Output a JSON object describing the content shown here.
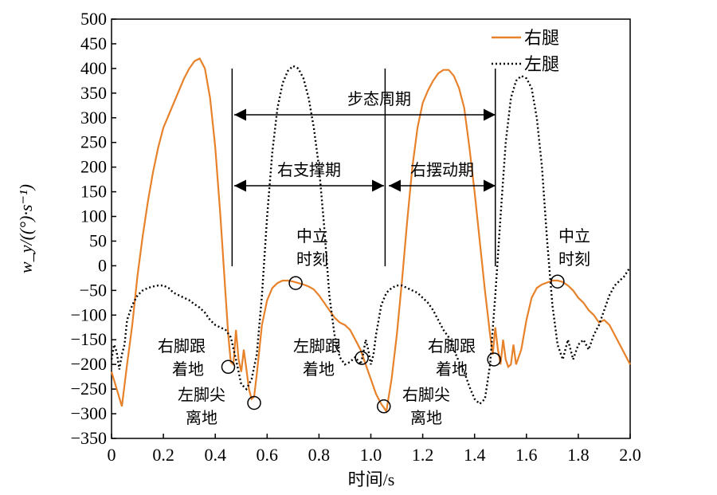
{
  "chart_data": {
    "type": "line",
    "xlabel": "时间/s",
    "ylabel": "w_y/((°)·s⁻¹)",
    "xlim": [
      0,
      2.0
    ],
    "ylim": [
      -350,
      500
    ],
    "x_ticks": [
      0,
      0.2,
      0.4,
      0.6,
      0.8,
      1.0,
      1.2,
      1.4,
      1.6,
      1.8,
      2.0
    ],
    "x_tick_labels": [
      "0",
      "0.2",
      "0.4",
      "0.6",
      "0.8",
      "1.0",
      "1.2",
      "1.4",
      "1.6",
      "1.8",
      "2.0"
    ],
    "y_ticks": [
      500,
      450,
      400,
      350,
      300,
      250,
      200,
      150,
      100,
      50,
      0,
      -50,
      -100,
      -150,
      -200,
      -250,
      -300,
      -350
    ],
    "y_tick_labels": [
      "500",
      "450",
      "400",
      "350",
      "300",
      "250",
      "200",
      "150",
      "100",
      "50",
      "0",
      "−50",
      "−100",
      "−150",
      "−200",
      "−250",
      "−300",
      "−350"
    ],
    "grid": false,
    "legend_position": "top-right",
    "series": [
      {
        "name": "右腿",
        "color": "#e8822a",
        "style": "solid",
        "x": [
          0.0,
          0.02,
          0.04,
          0.06,
          0.08,
          0.1,
          0.12,
          0.14,
          0.16,
          0.18,
          0.2,
          0.22,
          0.24,
          0.26,
          0.28,
          0.3,
          0.32,
          0.34,
          0.36,
          0.38,
          0.4,
          0.42,
          0.44,
          0.45,
          0.46,
          0.47,
          0.48,
          0.49,
          0.5,
          0.51,
          0.52,
          0.53,
          0.54,
          0.55,
          0.56,
          0.58,
          0.6,
          0.62,
          0.64,
          0.66,
          0.68,
          0.7,
          0.72,
          0.74,
          0.76,
          0.78,
          0.8,
          0.82,
          0.84,
          0.86,
          0.88,
          0.9,
          0.92,
          0.94,
          0.96,
          0.98,
          1.0,
          1.02,
          1.04,
          1.06,
          1.08,
          1.1,
          1.12,
          1.14,
          1.16,
          1.18,
          1.2,
          1.22,
          1.24,
          1.26,
          1.28,
          1.3,
          1.32,
          1.34,
          1.36,
          1.38,
          1.4,
          1.42,
          1.44,
          1.46,
          1.47,
          1.48,
          1.49,
          1.5,
          1.51,
          1.52,
          1.53,
          1.54,
          1.55,
          1.56,
          1.58,
          1.6,
          1.62,
          1.64,
          1.66,
          1.68,
          1.7,
          1.72,
          1.74,
          1.76,
          1.78,
          1.8,
          1.82,
          1.84,
          1.86,
          1.88,
          1.9,
          1.92,
          1.94,
          1.96,
          1.98,
          2.0
        ],
        "y": [
          -215,
          -250,
          -285,
          -200,
          -120,
          -20,
          60,
          130,
          190,
          240,
          280,
          305,
          330,
          355,
          380,
          400,
          415,
          420,
          400,
          340,
          240,
          100,
          -60,
          -140,
          -195,
          -200,
          -130,
          -190,
          -215,
          -170,
          -210,
          -250,
          -270,
          -265,
          -220,
          -120,
          -70,
          -45,
          -35,
          -30,
          -30,
          -32,
          -35,
          -38,
          -42,
          -48,
          -60,
          -75,
          -90,
          -105,
          -115,
          -120,
          -130,
          -150,
          -170,
          -200,
          -230,
          -260,
          -280,
          -295,
          -230,
          -140,
          -30,
          90,
          200,
          280,
          330,
          355,
          375,
          390,
          397,
          397,
          385,
          360,
          320,
          240,
          150,
          50,
          -50,
          -140,
          -180,
          -125,
          -170,
          -200,
          -150,
          -190,
          -205,
          -200,
          -160,
          -200,
          -170,
          -110,
          -65,
          -45,
          -38,
          -34,
          -30,
          -30,
          -33,
          -40,
          -50,
          -65,
          -75,
          -90,
          -100,
          -115,
          -110,
          -120,
          -140,
          -160,
          -180,
          -200
        ]
      },
      {
        "name": "左腿",
        "color": "#000000",
        "style": "dotted",
        "x": [
          0.0,
          0.01,
          0.02,
          0.03,
          0.04,
          0.05,
          0.06,
          0.08,
          0.1,
          0.12,
          0.14,
          0.16,
          0.18,
          0.2,
          0.22,
          0.24,
          0.26,
          0.28,
          0.3,
          0.32,
          0.34,
          0.36,
          0.38,
          0.4,
          0.42,
          0.44,
          0.46,
          0.48,
          0.5,
          0.52,
          0.54,
          0.56,
          0.58,
          0.6,
          0.62,
          0.64,
          0.66,
          0.68,
          0.7,
          0.72,
          0.74,
          0.76,
          0.78,
          0.8,
          0.82,
          0.84,
          0.86,
          0.88,
          0.9,
          0.92,
          0.94,
          0.96,
          0.97,
          0.98,
          0.99,
          1.0,
          1.01,
          1.02,
          1.03,
          1.04,
          1.06,
          1.08,
          1.1,
          1.12,
          1.14,
          1.16,
          1.18,
          1.2,
          1.22,
          1.24,
          1.26,
          1.28,
          1.3,
          1.32,
          1.34,
          1.36,
          1.38,
          1.4,
          1.42,
          1.44,
          1.46,
          1.48,
          1.5,
          1.52,
          1.54,
          1.56,
          1.58,
          1.6,
          1.62,
          1.64,
          1.66,
          1.68,
          1.7,
          1.72,
          1.74,
          1.76,
          1.78,
          1.8,
          1.82,
          1.84,
          1.86,
          1.88,
          1.9,
          1.92,
          1.94,
          1.96,
          1.98,
          1.99,
          2.0
        ],
        "y": [
          -190,
          -160,
          -175,
          -210,
          -180,
          -160,
          -110,
          -80,
          -60,
          -50,
          -45,
          -42,
          -40,
          -40,
          -45,
          -55,
          -60,
          -65,
          -70,
          -78,
          -85,
          -95,
          -110,
          -120,
          -125,
          -130,
          -145,
          -190,
          -240,
          -250,
          -230,
          -180,
          -60,
          100,
          230,
          320,
          370,
          395,
          405,
          400,
          380,
          340,
          280,
          200,
          80,
          -60,
          -140,
          -185,
          -200,
          -195,
          -185,
          -200,
          -180,
          -150,
          -170,
          -200,
          -180,
          -140,
          -110,
          -80,
          -55,
          -45,
          -40,
          -40,
          -45,
          -50,
          -55,
          -65,
          -75,
          -90,
          -110,
          -130,
          -145,
          -170,
          -195,
          -215,
          -245,
          -270,
          -280,
          -270,
          -200,
          -60,
          100,
          250,
          340,
          375,
          385,
          380,
          360,
          300,
          200,
          50,
          -80,
          -160,
          -190,
          -150,
          -190,
          -160,
          -150,
          -170,
          -140,
          -120,
          -90,
          -60,
          -40,
          -30,
          -20,
          -10,
          -5
        ]
      }
    ],
    "annotations": {
      "gait_cycle": "步态周期",
      "right_stance": "右支撑期",
      "right_swing": "右摆动期",
      "mid_stance_1_l1": "中立",
      "mid_stance_1_l2": "时刻",
      "mid_stance_2_l1": "中立",
      "mid_stance_2_l2": "时刻",
      "right_heel_strike_1_l1": "右脚跟",
      "right_heel_strike_1_l2": "着地",
      "left_toe_off_l1": "左脚尖",
      "left_toe_off_l2": "离地",
      "left_heel_strike_l1": "左脚跟",
      "left_heel_strike_l2": "着地",
      "right_toe_off_l1": "右脚尖",
      "right_toe_off_l2": "离地",
      "right_heel_strike_2_l1": "右脚跟",
      "right_heel_strike_2_l2": "着地"
    },
    "event_lines_x": [
      0.465,
      1.055,
      1.48
    ],
    "event_points": [
      {
        "x": 0.45,
        "y": -205
      },
      {
        "x": 0.55,
        "y": -278
      },
      {
        "x": 0.71,
        "y": -35
      },
      {
        "x": 0.965,
        "y": -187
      },
      {
        "x": 1.05,
        "y": -285
      },
      {
        "x": 1.475,
        "y": -190
      },
      {
        "x": 1.72,
        "y": -32
      }
    ]
  }
}
